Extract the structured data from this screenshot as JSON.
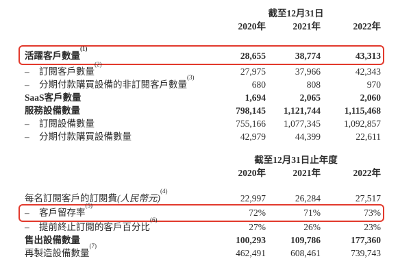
{
  "colors": {
    "highlight_box": "#e2392c",
    "text": "#2d2d2d"
  },
  "dash_prefix": "–",
  "table1": {
    "header": "截至12月31日",
    "years": [
      "2020年",
      "2021年",
      "2022年"
    ],
    "rows": [
      {
        "label": "活躍客戶數量",
        "sup": "(1)",
        "dash": false,
        "bold": true,
        "boxed": true,
        "values": [
          "28,655",
          "38,774",
          "43,313"
        ]
      },
      {
        "label": "訂閱客戶數量",
        "sup": "(2)",
        "dash": true,
        "bold": false,
        "boxed": false,
        "values": [
          "27,975",
          "37,966",
          "42,343"
        ]
      },
      {
        "label": "分期付款購買設備的非訂閱客戶數量",
        "sup": "(3)",
        "dash": true,
        "bold": false,
        "boxed": false,
        "values": [
          "680",
          "808",
          "970"
        ]
      },
      {
        "label": "SaaS客戶數量",
        "sup": "",
        "dash": false,
        "bold": true,
        "boxed": false,
        "values": [
          "1,694",
          "2,065",
          "2,060"
        ]
      },
      {
        "label": "服務設備數量",
        "sup": "",
        "dash": false,
        "bold": true,
        "boxed": false,
        "values": [
          "798,145",
          "1,121,744",
          "1,115,468"
        ]
      },
      {
        "label": "訂閱設備數量",
        "sup": "",
        "dash": true,
        "bold": false,
        "boxed": false,
        "values": [
          "755,166",
          "1,077,345",
          "1,092,857"
        ]
      },
      {
        "label": "分期付款購買設備數量",
        "sup": "",
        "dash": true,
        "bold": false,
        "boxed": false,
        "values": [
          "42,979",
          "44,399",
          "22,611"
        ]
      }
    ]
  },
  "table2": {
    "header": "截至12月31日止年度",
    "years": [
      "2020年",
      "2021年",
      "2022年"
    ],
    "rows": [
      {
        "label": "每名訂閱客戶的訂閱費",
        "note": "(人民幣元)",
        "sup": "(4)",
        "dash": false,
        "bold": false,
        "boxed": false,
        "values": [
          "22,997",
          "26,284",
          "27,517"
        ]
      },
      {
        "label": "客戶留存率",
        "sup": "(5)",
        "dash": true,
        "bold": false,
        "boxed": true,
        "values": [
          "72%",
          "71%",
          "73%"
        ]
      },
      {
        "label": "提前終止訂閱的客戶百分比",
        "sup": "(6)",
        "dash": true,
        "bold": false,
        "boxed": false,
        "values": [
          "27%",
          "26%",
          "23%"
        ]
      },
      {
        "label": "售出設備數量",
        "sup": "",
        "dash": false,
        "bold": true,
        "boxed": false,
        "values": [
          "100,293",
          "109,786",
          "177,360"
        ]
      },
      {
        "label": "再製造設備數量",
        "sup": "(7)",
        "dash": false,
        "bold": false,
        "boxed": false,
        "values": [
          "462,491",
          "608,461",
          "739,743"
        ]
      }
    ]
  }
}
